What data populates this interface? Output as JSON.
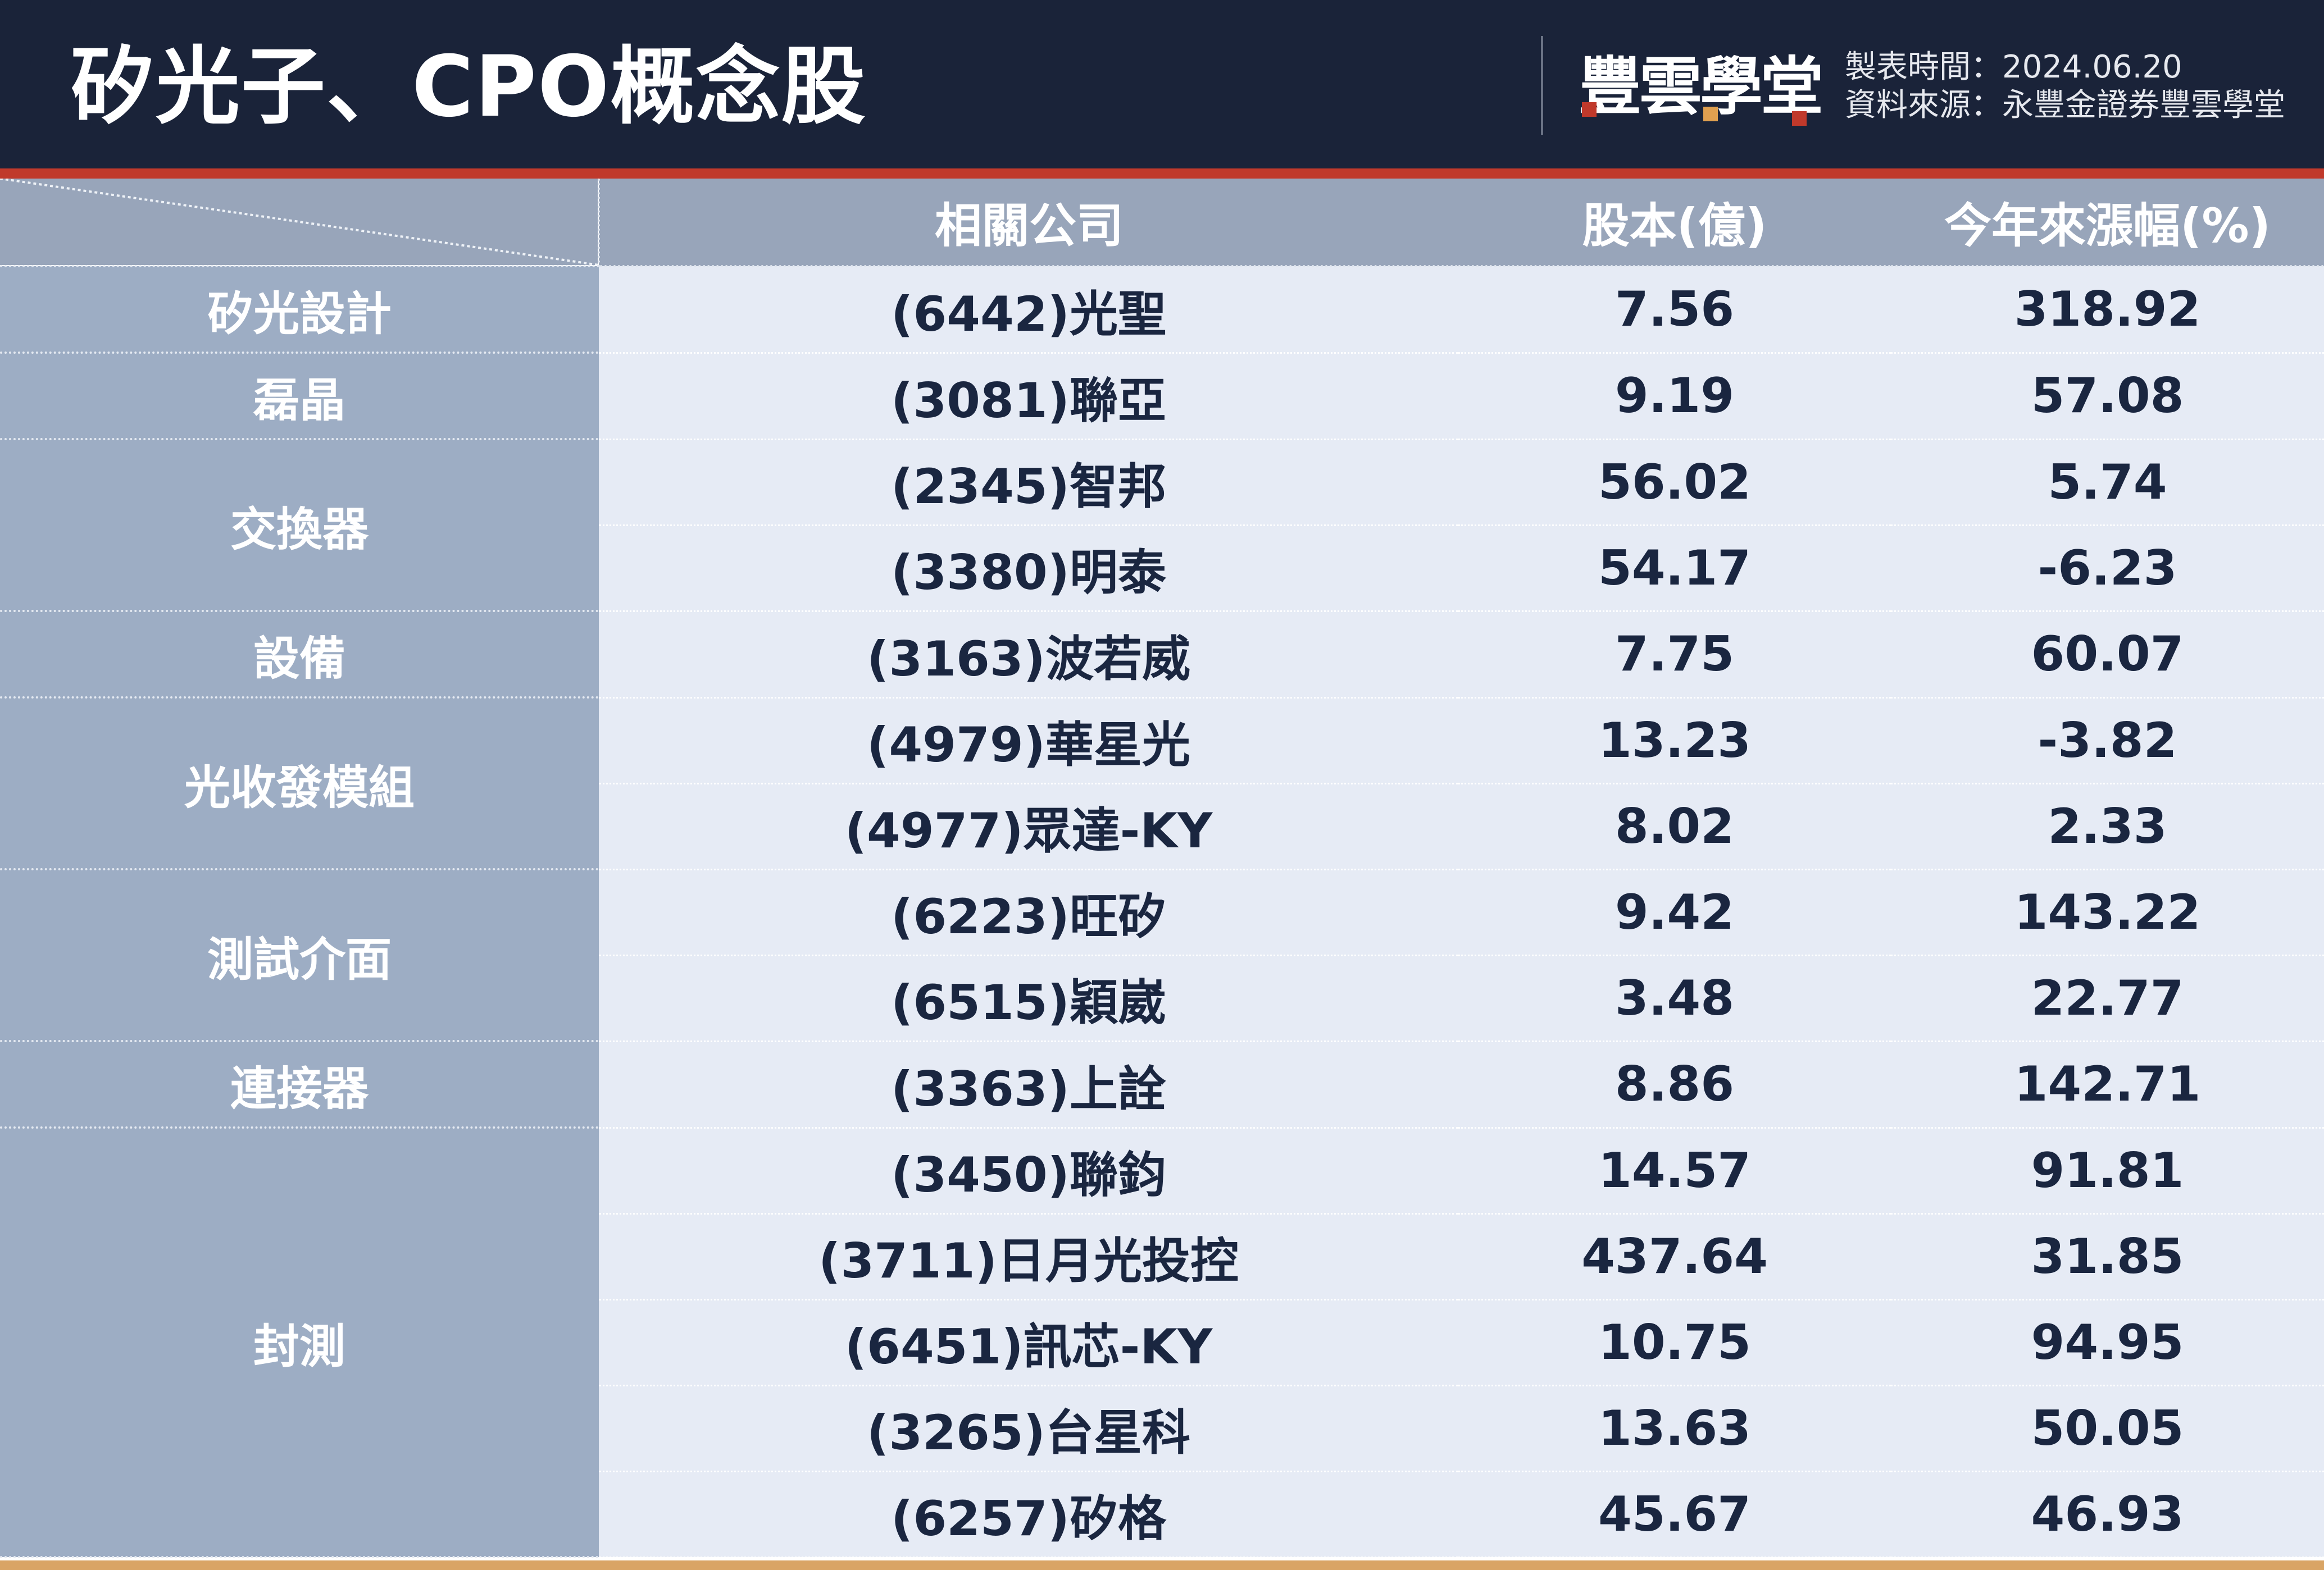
{
  "header": {
    "title": "矽光子、CPO概念股",
    "logo_text": "豐雲學堂",
    "date_label": "製表時間：2024.06.20",
    "source_label": "資料來源：永豐金證券豐雲學堂"
  },
  "colors": {
    "header_bg": "#1a2339",
    "accent_red": "#c0392b",
    "category_bg": "#9dadc4",
    "row_bg": "#e6ebf5",
    "bottom_bar": "#d9a465"
  },
  "table": {
    "columns": [
      "相關公司",
      "股本(億)",
      "今年來漲幅(%)"
    ],
    "groups": [
      {
        "category": "矽光設計",
        "rows": [
          {
            "company": "(6442)光聖",
            "capital": "7.56",
            "change": "318.92"
          }
        ]
      },
      {
        "category": "磊晶",
        "rows": [
          {
            "company": "(3081)聯亞",
            "capital": "9.19",
            "change": "57.08"
          }
        ]
      },
      {
        "category": "交換器",
        "rows": [
          {
            "company": "(2345)智邦",
            "capital": "56.02",
            "change": "5.74"
          },
          {
            "company": "(3380)明泰",
            "capital": "54.17",
            "change": "-6.23"
          }
        ]
      },
      {
        "category": "設備",
        "rows": [
          {
            "company": "(3163)波若威",
            "capital": "7.75",
            "change": "60.07"
          }
        ]
      },
      {
        "category": "光收發模組",
        "rows": [
          {
            "company": "(4979)華星光",
            "capital": "13.23",
            "change": "-3.82"
          },
          {
            "company": "(4977)眾達-KY",
            "capital": "8.02",
            "change": "2.33"
          }
        ]
      },
      {
        "category": "測試介面",
        "rows": [
          {
            "company": "(6223)旺矽",
            "capital": "9.42",
            "change": "143.22"
          },
          {
            "company": "(6515)穎崴",
            "capital": "3.48",
            "change": "22.77"
          }
        ]
      },
      {
        "category": "連接器",
        "rows": [
          {
            "company": "(3363)上詮",
            "capital": "8.86",
            "change": "142.71"
          }
        ]
      },
      {
        "category": "封測",
        "rows": [
          {
            "company": "(3450)聯鈞",
            "capital": "14.57",
            "change": "91.81"
          },
          {
            "company": "(3711)日月光投控",
            "capital": "437.64",
            "change": "31.85"
          },
          {
            "company": "(6451)訊芯-KY",
            "capital": "10.75",
            "change": "94.95"
          },
          {
            "company": "(3265)台星科",
            "capital": "13.63",
            "change": "50.05"
          },
          {
            "company": "(6257)矽格",
            "capital": "45.67",
            "change": "46.93"
          }
        ]
      }
    ]
  }
}
